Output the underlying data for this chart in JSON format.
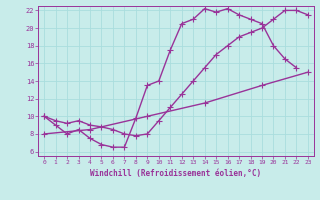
{
  "title": "",
  "xlabel": "Windchill (Refroidissement éolien,°C)",
  "bg_color": "#c8ecea",
  "line_color": "#993399",
  "grid_color": "#aadddd",
  "xlim": [
    -0.5,
    23.5
  ],
  "ylim": [
    5.5,
    22.5
  ],
  "xticks": [
    0,
    1,
    2,
    3,
    4,
    5,
    6,
    7,
    8,
    9,
    10,
    11,
    12,
    13,
    14,
    15,
    16,
    17,
    18,
    19,
    20,
    21,
    22,
    23
  ],
  "yticks": [
    6,
    8,
    10,
    12,
    14,
    16,
    18,
    20,
    22
  ],
  "curve1_x": [
    0,
    1,
    2,
    3,
    4,
    5,
    6,
    7,
    8,
    9,
    10,
    11,
    12,
    13,
    14,
    15,
    16,
    17,
    18,
    19,
    20,
    21,
    22
  ],
  "curve1_y": [
    10,
    9,
    8,
    8.5,
    7.5,
    6.8,
    6.5,
    6.5,
    9.8,
    13.5,
    14,
    17.5,
    20.5,
    21,
    22.2,
    21.8,
    22.2,
    21.5,
    21,
    20.5,
    18,
    16.5,
    15.5
  ],
  "curve2_x": [
    0,
    1,
    2,
    3,
    4,
    5,
    6,
    7,
    8,
    9,
    10,
    11,
    12,
    13,
    14,
    15,
    16,
    17,
    18,
    19,
    20,
    21,
    22,
    23
  ],
  "curve2_y": [
    10,
    9.5,
    9.2,
    9.5,
    9,
    8.8,
    8.5,
    8,
    7.8,
    8,
    9.5,
    11,
    12.5,
    14,
    15.5,
    17,
    18,
    19,
    19.5,
    20,
    21,
    22,
    22,
    21.5
  ],
  "curve3_x": [
    0,
    4,
    9,
    14,
    19,
    23
  ],
  "curve3_y": [
    8,
    8.5,
    10,
    11.5,
    13.5,
    15
  ],
  "marker": "+",
  "markersize": 4,
  "linewidth": 1.0
}
